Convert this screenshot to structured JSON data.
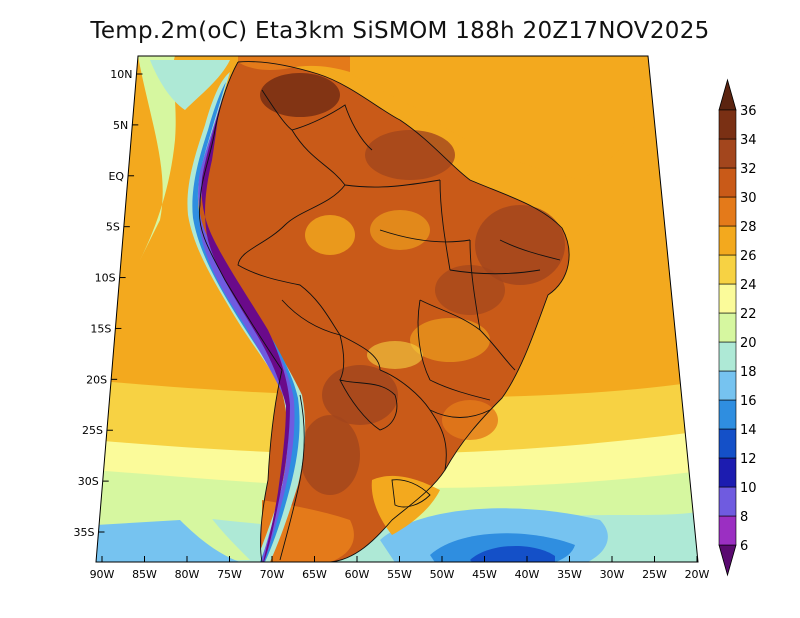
{
  "title": "Temp.2m(oC) Eta3km SiSMOM 188h 20Z17NOV2025",
  "map": {
    "variable": "2 m air temperature",
    "units": "oC",
    "lat_labels": [
      "10N",
      "5N",
      "EQ",
      "5S",
      "10S",
      "15S",
      "20S",
      "25S",
      "30S",
      "35S"
    ],
    "lon_labels": [
      "90W",
      "85W",
      "80W",
      "75W",
      "70W",
      "65W",
      "60W",
      "55W",
      "50W",
      "45W",
      "40W",
      "35W",
      "30W",
      "25W",
      "20W"
    ]
  },
  "colorbar": {
    "levels": [
      "6",
      "8",
      "10",
      "12",
      "14",
      "16",
      "18",
      "20",
      "22",
      "24",
      "26",
      "28",
      "30",
      "32",
      "34",
      "36"
    ],
    "colors": [
      "#6a0a8a",
      "#9b2fc2",
      "#6f5be0",
      "#1c1cb0",
      "#1450c8",
      "#2f8ee0",
      "#76c3f0",
      "#aee9d6",
      "#d6f7a0",
      "#fbfb9a",
      "#f7d243",
      "#f3a91e",
      "#e47a1a",
      "#c95a18",
      "#a3461d",
      "#7a3014"
    ],
    "arrow_low": "#5a0a70",
    "arrow_high": "#5b2410"
  }
}
